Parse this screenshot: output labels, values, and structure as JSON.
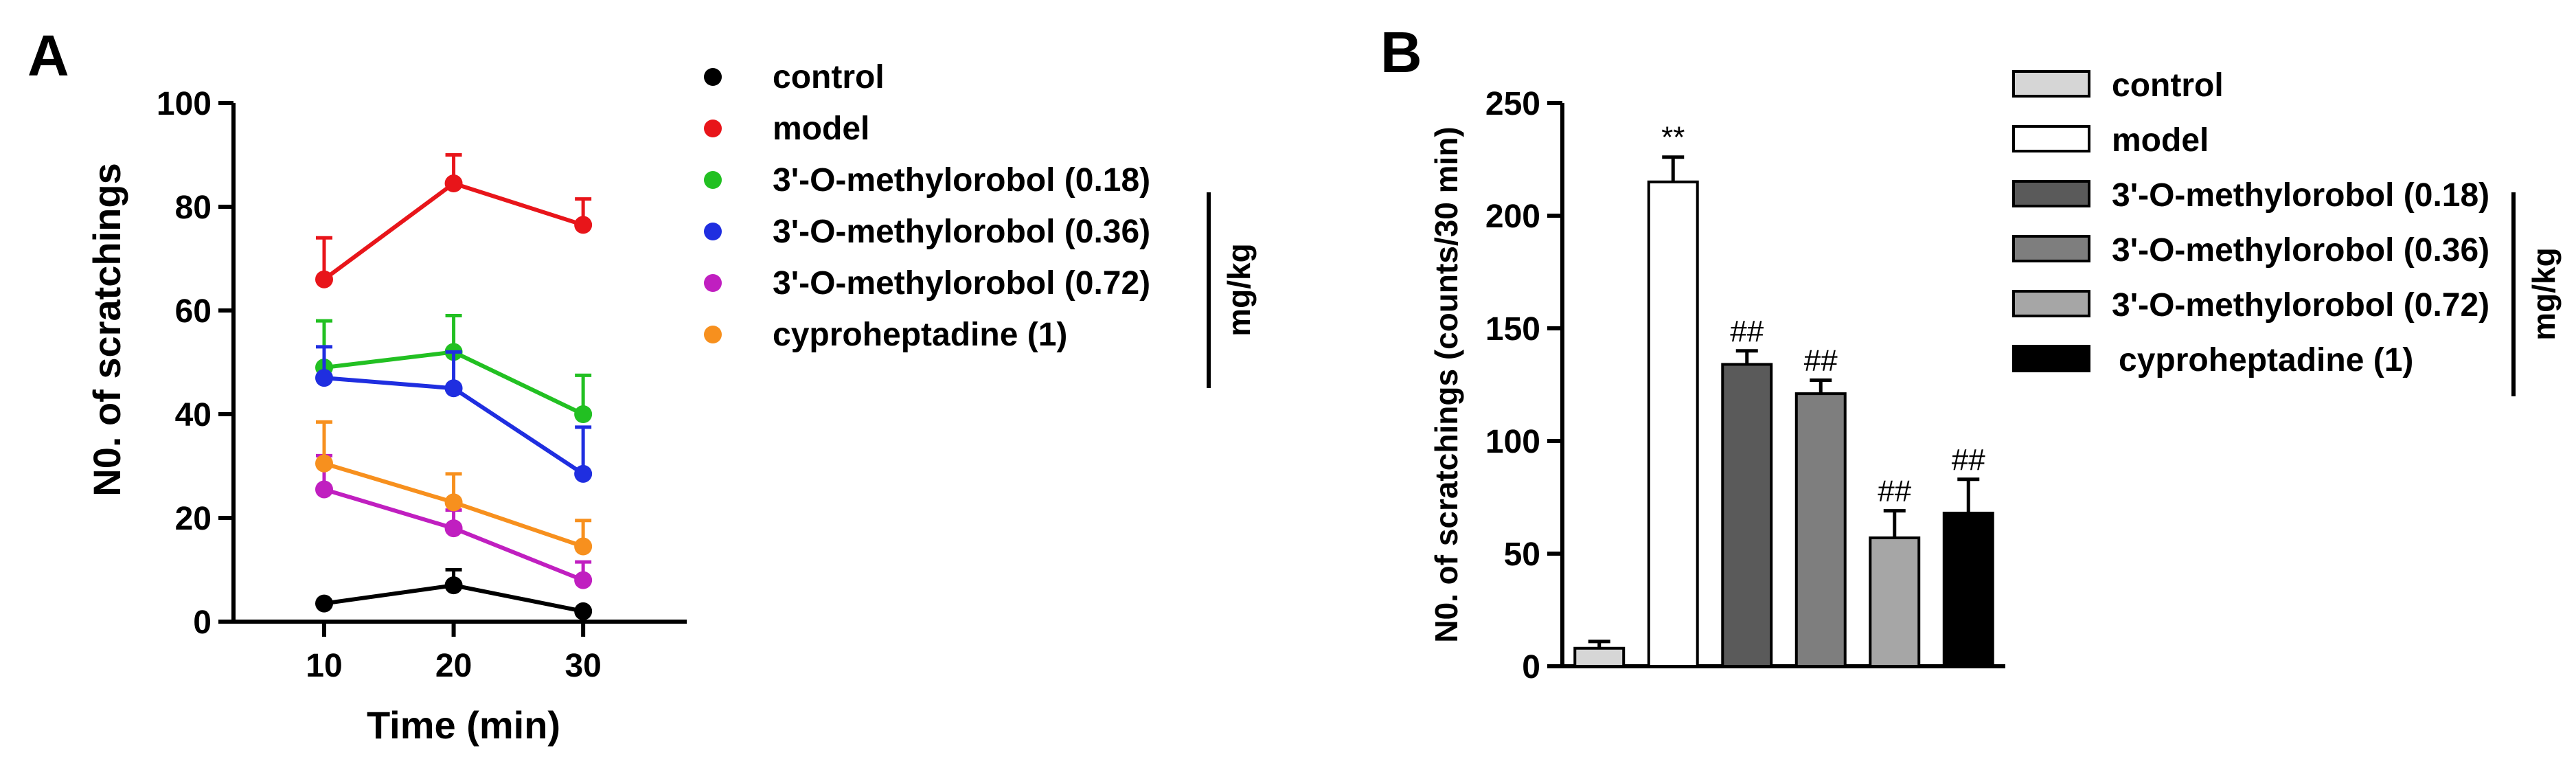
{
  "panel_a": {
    "letter": "A",
    "unit_label": "mg/kg",
    "chart_data": {
      "type": "line",
      "xlabel": "Time (min)",
      "ylabel": "N0. of scratchings",
      "x": [
        10,
        20,
        30
      ],
      "xticks": [
        "10",
        "20",
        "30"
      ],
      "yticks": [
        "0",
        "20",
        "40",
        "60",
        "80",
        "100"
      ],
      "xlim": [
        3,
        38
      ],
      "ylim": [
        0,
        100
      ],
      "series": [
        {
          "name": "control",
          "color": "#000000",
          "values": [
            3.5,
            7,
            2
          ],
          "errors": [
            0,
            3,
            0
          ]
        },
        {
          "name": "model",
          "color": "#e8151a",
          "values": [
            66,
            84.5,
            76.5
          ],
          "errors": [
            8,
            5.5,
            5
          ]
        },
        {
          "name": "3'-O-methylorobol (0.18)",
          "color": "#22c022",
          "values": [
            49,
            52,
            40
          ],
          "errors": [
            9,
            7,
            7.5
          ]
        },
        {
          "name": "3'-O-methylorobol (0.36)",
          "color": "#1f2ee0",
          "values": [
            47,
            45,
            28.5
          ],
          "errors": [
            6,
            7,
            9
          ]
        },
        {
          "name": "3'-O-methylorobol (0.72)",
          "color": "#c01fc0",
          "values": [
            25.5,
            18,
            8
          ],
          "errors": [
            6.5,
            3.5,
            3.5
          ]
        },
        {
          "name": "cyproheptadine (1)",
          "color": "#f7901e",
          "values": [
            30.5,
            23,
            14.5
          ],
          "errors": [
            8,
            5.5,
            5
          ]
        }
      ]
    }
  },
  "panel_b": {
    "letter": "B",
    "unit_label": "mg/kg",
    "chart_data": {
      "type": "bar",
      "ylabel": "N0. of scratchings (counts/30 min)",
      "yticks": [
        "0",
        "50",
        "100",
        "150",
        "200",
        "250"
      ],
      "ylim": [
        0,
        250
      ],
      "categories": [
        "control",
        "model",
        "3'-O-methylorobol (0.18)",
        "3'-O-methylorobol (0.36)",
        "3'-O-methylorobol (0.72)",
        "cyproheptadine (1)"
      ],
      "values": [
        8,
        215,
        134,
        121,
        57,
        68
      ],
      "errors": [
        3,
        11,
        6,
        6,
        12,
        15
      ],
      "colors": [
        "#d6d6d6",
        "#ffffff",
        "#5a5a5a",
        "#7e7e7e",
        "#a6a6a6",
        "#000000"
      ],
      "annotations": [
        "",
        "**",
        "##",
        "##",
        "##",
        "##"
      ]
    }
  }
}
